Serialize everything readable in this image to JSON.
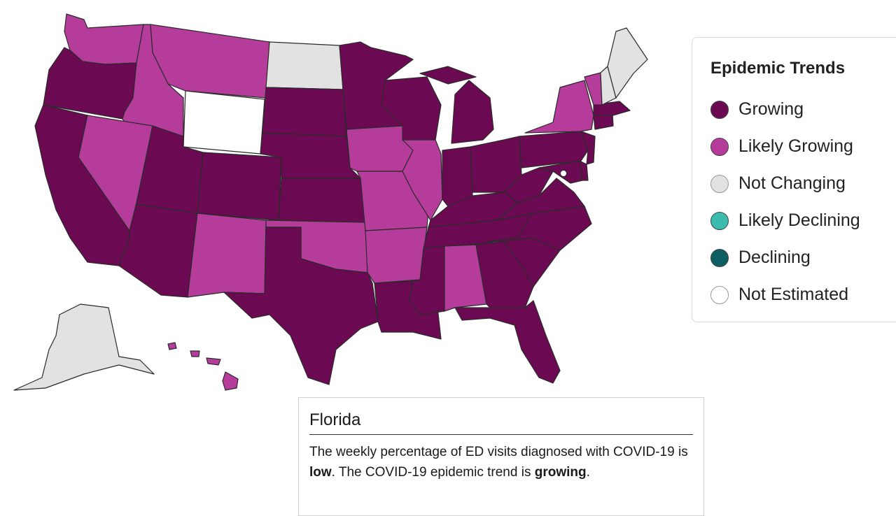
{
  "colors": {
    "growing": "#6b0a53",
    "likely_growing": "#b63c9b",
    "not_changing": "#e2e2e2",
    "likely_declining": "#3bbcae",
    "declining": "#0d5f63",
    "not_estimated": "#ffffff"
  },
  "legend": {
    "title": "Epidemic Trends",
    "items": [
      {
        "label": "Growing",
        "color": "#6b0a53"
      },
      {
        "label": "Likely Growing",
        "color": "#b63c9b"
      },
      {
        "label": "Not Changing",
        "color": "#e2e2e2"
      },
      {
        "label": "Likely Declining",
        "color": "#3bbcae"
      },
      {
        "label": "Declining",
        "color": "#0d5f63"
      },
      {
        "label": "Not Estimated",
        "color": "#ffffff"
      }
    ]
  },
  "state_trends": {
    "Washington": "Likely Growing",
    "Oregon": "Growing",
    "California": "Growing",
    "Idaho": "Likely Growing",
    "Nevada": "Likely Growing",
    "Montana": "Likely Growing",
    "Wyoming": "Not Estimated",
    "Utah": "Growing",
    "Arizona": "Growing",
    "Colorado": "Growing",
    "New Mexico": "Likely Growing",
    "North Dakota": "Not Changing",
    "South Dakota": "Growing",
    "Nebraska": "Growing",
    "Kansas": "Growing",
    "Oklahoma": "Likely Growing",
    "Texas": "Growing",
    "Minnesota": "Growing",
    "Iowa": "Likely Growing",
    "Missouri": "Likely Growing",
    "Arkansas": "Likely Growing",
    "Louisiana": "Growing",
    "Wisconsin": "Growing",
    "Illinois": "Likely Growing",
    "Michigan": "Growing",
    "Indiana": "Growing",
    "Ohio": "Growing",
    "Kentucky": "Growing",
    "Tennessee": "Growing",
    "Mississippi": "Growing",
    "Alabama": "Likely Growing",
    "Georgia": "Growing",
    "Florida": "Growing",
    "South Carolina": "Growing",
    "North Carolina": "Growing",
    "Virginia": "Growing",
    "West Virginia": "Growing",
    "Pennsylvania": "Growing",
    "New York": "Likely Growing",
    "Maryland": "Growing",
    "Delaware": "Growing",
    "New Jersey": "Growing",
    "Connecticut": "Growing",
    "Massachusetts": "Growing",
    "Vermont": "Likely Growing",
    "New Hampshire": "Not Changing",
    "Maine": "Not Changing",
    "Alaska": "Not Changing",
    "Hawaii": "Likely Growing"
  },
  "tooltip": {
    "state": "Florida",
    "text_1": "The weekly percentage of ED visits diagnosed with COVID-19 is ",
    "level": "low",
    "text_2": ". The COVID-19 epidemic trend is ",
    "trend": "growing",
    "text_3": "."
  }
}
